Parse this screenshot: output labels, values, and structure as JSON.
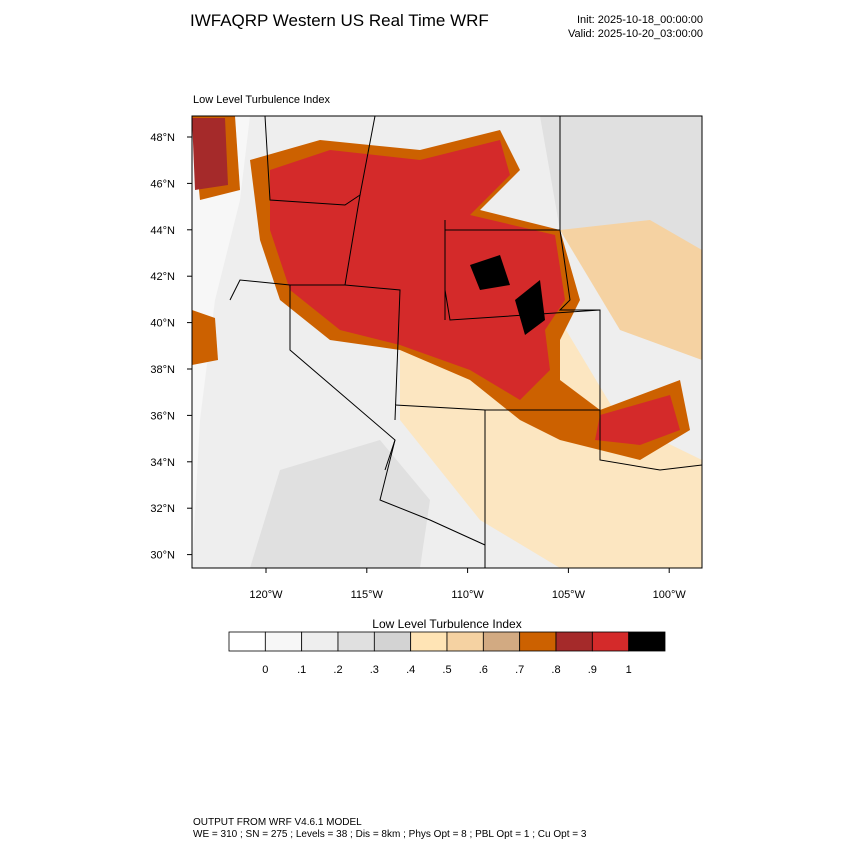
{
  "header": {
    "title": "IWFAQRP Western US Real Time WRF",
    "init": "Init: 2025-10-18_00:00:00",
    "valid": "Valid: 2025-10-20_03:00:00"
  },
  "map": {
    "subtitle": "Low Level Turbulence Index",
    "lat_labels": [
      "48°N",
      "46°N",
      "44°N",
      "42°N",
      "40°N",
      "38°N",
      "36°N",
      "34°N",
      "32°N",
      "30°N"
    ],
    "lon_labels": [
      "120°W",
      "115°W",
      "110°W",
      "105°W",
      "100°W"
    ]
  },
  "colorbar": {
    "title": "Low Level Turbulence Index",
    "labels": [
      "0",
      ".1",
      ".2",
      ".3",
      ".4",
      ".5",
      ".6",
      ".7",
      ".8",
      ".9",
      "1"
    ],
    "colors": [
      "#ffffff",
      "#f7f7f7",
      "#eeeeee",
      "#e0e0e0",
      "#d3d3d3",
      "#ffe4b5",
      "#f5d2a2",
      "#d2aa82",
      "#cc6100",
      "#a52a2a",
      "#d42a2a",
      "#000000"
    ]
  },
  "footer": {
    "line1": "OUTPUT FROM WRF V4.6.1 MODEL",
    "line2": "WE = 310 ; SN = 275 ; Levels = 38 ; Dis = 8km ; Phys Opt = 8 ; PBL Opt = 1 ; Cu Opt = 3"
  }
}
